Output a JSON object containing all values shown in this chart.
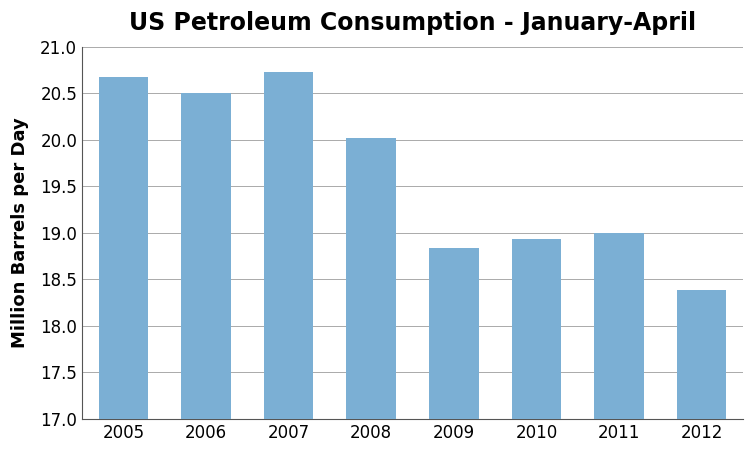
{
  "title": "US Petroleum Consumption - January-April",
  "ylabel": "Million Barrels per Day",
  "categories": [
    "2005",
    "2006",
    "2007",
    "2008",
    "2009",
    "2010",
    "2011",
    "2012"
  ],
  "values": [
    20.68,
    20.5,
    20.73,
    20.02,
    18.84,
    18.93,
    19.0,
    18.39
  ],
  "bar_color": "#7BAFD4",
  "ylim": [
    17.0,
    21.0
  ],
  "yticks": [
    17.0,
    17.5,
    18.0,
    18.5,
    19.0,
    19.5,
    20.0,
    20.5,
    21.0
  ],
  "background_color": "#ffffff",
  "grid_color": "#aaaaaa",
  "title_fontsize": 17,
  "label_fontsize": 13,
  "tick_fontsize": 12
}
